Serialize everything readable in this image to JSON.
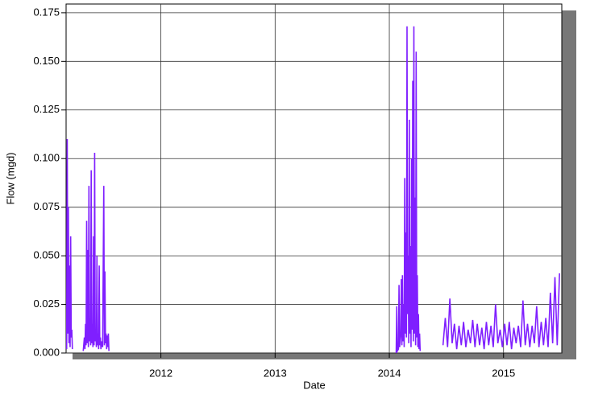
{
  "chart_data": {
    "type": "line",
    "x_label": "Date",
    "y_label": "Flow (mgd)",
    "xlim": [
      2011.17,
      2015.51
    ],
    "xticks": [
      2012,
      2013,
      2014,
      2015
    ],
    "ylim": [
      0,
      0.1795
    ],
    "yticks": [
      {
        "value": 0,
        "label": "0.000"
      },
      {
        "value": 0.025,
        "label": "0.025"
      },
      {
        "value": 0.05,
        "label": "0.050"
      },
      {
        "value": 0.075,
        "label": "0.075"
      },
      {
        "value": 0.1,
        "label": "0.100"
      },
      {
        "value": 0.125,
        "label": "0.125"
      },
      {
        "value": 0.15,
        "label": "0.150"
      },
      {
        "value": 0.175,
        "label": "0.175"
      }
    ],
    "grid": true,
    "series": [
      {
        "name": "Flow",
        "color": "#7f1fff",
        "x": [
          2011.175,
          2011.18,
          2011.185,
          2011.19,
          2011.195,
          2011.2,
          2011.205,
          2011.21,
          2011.215,
          2011.22,
          2011.225,
          2011.27,
          2011.32,
          2011.33,
          2011.335,
          2011.34,
          2011.345,
          2011.35,
          2011.355,
          2011.36,
          2011.365,
          2011.37,
          2011.375,
          2011.38,
          2011.385,
          2011.39,
          2011.395,
          2011.4,
          2011.405,
          2011.41,
          2011.415,
          2011.42,
          2011.425,
          2011.43,
          2011.435,
          2011.44,
          2011.445,
          2011.45,
          2011.455,
          2011.46,
          2011.465,
          2011.47,
          2011.475,
          2011.48,
          2011.49,
          2011.5,
          2011.505,
          2011.51,
          2011.515,
          2011.52,
          2011.525,
          2011.53,
          2011.535,
          2011.54,
          2011.545,
          2012.8,
          2014.06,
          2014.065,
          2014.07,
          2014.08,
          2014.085,
          2014.09,
          2014.1,
          2014.105,
          2014.11,
          2014.115,
          2014.12,
          2014.125,
          2014.13,
          2014.135,
          2014.14,
          2014.145,
          2014.15,
          2014.155,
          2014.16,
          2014.165,
          2014.17,
          2014.175,
          2014.18,
          2014.185,
          2014.19,
          2014.195,
          2014.2,
          2014.205,
          2014.21,
          2014.215,
          2014.22,
          2014.225,
          2014.23,
          2014.235,
          2014.24,
          2014.245,
          2014.25,
          2014.255,
          2014.26,
          2014.265,
          2014.27,
          2014.37,
          2014.47,
          2014.49,
          2014.51,
          2014.53,
          2014.55,
          2014.57,
          2014.59,
          2014.61,
          2014.63,
          2014.65,
          2014.67,
          2014.69,
          2014.71,
          2014.73,
          2014.75,
          2014.77,
          2014.79,
          2014.81,
          2014.83,
          2014.85,
          2014.87,
          2014.89,
          2014.91,
          2014.93,
          2014.95,
          2014.97,
          2014.99,
          2015.01,
          2015.03,
          2015.05,
          2015.07,
          2015.09,
          2015.11,
          2015.13,
          2015.15,
          2015.17,
          2015.19,
          2015.21,
          2015.23,
          2015.25,
          2015.27,
          2015.29,
          2015.31,
          2015.33,
          2015.35,
          2015.37,
          2015.39,
          2015.41,
          2015.43,
          2015.45,
          2015.47,
          2015.49
        ],
        "values": [
          0.002,
          0.11,
          0.01,
          0.075,
          0.005,
          0.045,
          0.003,
          0.06,
          0.008,
          0.012,
          0.002,
          null,
          0.001,
          0.008,
          0.002,
          0.015,
          0.004,
          0.068,
          0.005,
          0.053,
          0.003,
          0.086,
          0.006,
          0.018,
          0.004,
          0.094,
          0.005,
          0.015,
          0.003,
          0.06,
          0.004,
          0.103,
          0.006,
          0.012,
          0.003,
          0.05,
          0.004,
          0.01,
          0.002,
          0.045,
          0.004,
          0.008,
          0.002,
          0.006,
          0.003,
          0.086,
          0.004,
          0.042,
          0.005,
          0.01,
          0.002,
          0.009,
          0.003,
          0.01,
          0.001,
          null,
          0,
          0.024,
          0.001,
          0.002,
          0.035,
          0.003,
          0.01,
          0.038,
          0.004,
          0.04,
          0.006,
          0.025,
          0.003,
          0.09,
          0.01,
          0.062,
          0.008,
          0.168,
          0.02,
          0.05,
          0.005,
          0.12,
          0.01,
          0.055,
          0.003,
          0.1,
          0.012,
          0.14,
          0.006,
          0.168,
          0.01,
          0.08,
          0.004,
          0.155,
          0.008,
          0.04,
          0.003,
          0.02,
          0.002,
          0.01,
          0.001,
          null,
          0.004,
          0.018,
          0.003,
          0.028,
          0.005,
          0.015,
          0.002,
          0.014,
          0.004,
          0.016,
          0.003,
          0.012,
          0.005,
          0.017,
          0.003,
          0.015,
          0.004,
          0.013,
          0.002,
          0.016,
          0.004,
          0.014,
          0.003,
          0.025,
          0.005,
          0.012,
          0.003,
          0.015,
          0.004,
          0.016,
          0.002,
          0.013,
          0.005,
          0.014,
          0.003,
          0.027,
          0.004,
          0.015,
          0.003,
          0.014,
          0.005,
          0.024,
          0.003,
          0.016,
          0.004,
          0.018,
          0.003,
          0.031,
          0.005,
          0.039,
          0.004,
          0.041
        ]
      }
    ]
  }
}
